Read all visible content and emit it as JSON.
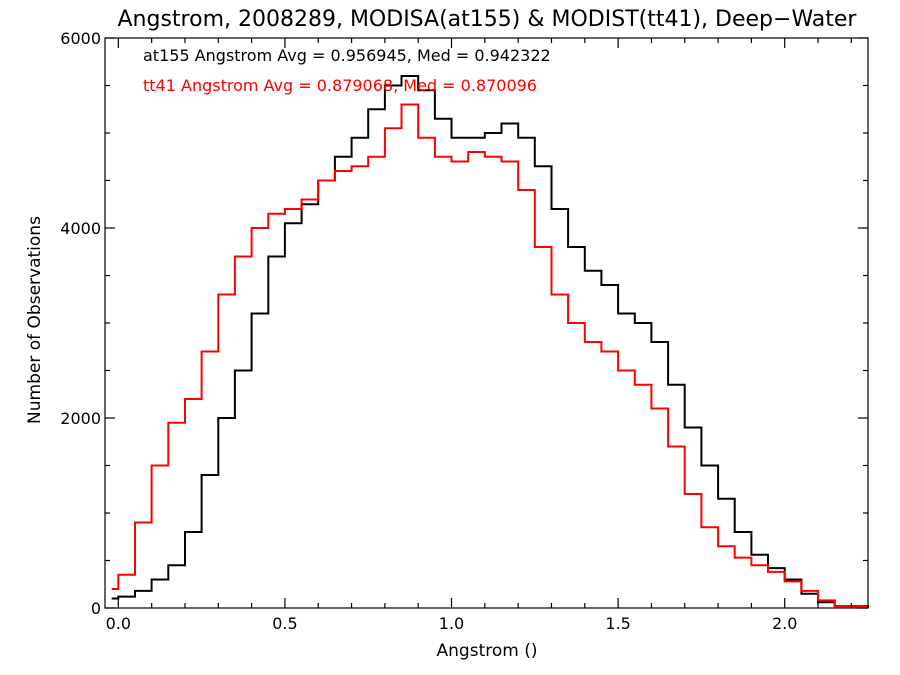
{
  "chart_data": {
    "type": "line",
    "step": true,
    "title": "Angstrom, 2008289, MODISA(at155) & MODIST(tt41), Deep−Water",
    "xlabel": "Angstrom ()",
    "ylabel": "Number of Observations",
    "xlim": [
      -0.04,
      2.25
    ],
    "ylim": [
      0,
      6000
    ],
    "x_ticks": [
      0.0,
      0.5,
      1.0,
      1.5,
      2.0
    ],
    "x_tick_labels": [
      "0.0",
      "0.5",
      "1.0",
      "1.5",
      "2.0"
    ],
    "y_ticks": [
      0,
      2000,
      4000,
      6000
    ],
    "y_tick_labels": [
      "0",
      "2000",
      "4000",
      "6000"
    ],
    "grid": false,
    "legend_position": "top-left",
    "series": [
      {
        "color": "#000000",
        "stats_text": "at155 Angstrom Avg = 0.956945, Med = 0.942322",
        "x": [
          -0.02,
          0.0,
          0.05,
          0.1,
          0.15,
          0.2,
          0.25,
          0.3,
          0.35,
          0.4,
          0.45,
          0.5,
          0.55,
          0.6,
          0.65,
          0.7,
          0.75,
          0.8,
          0.85,
          0.9,
          0.95,
          1.0,
          1.05,
          1.1,
          1.15,
          1.2,
          1.25,
          1.3,
          1.35,
          1.4,
          1.45,
          1.5,
          1.55,
          1.6,
          1.65,
          1.7,
          1.75,
          1.8,
          1.85,
          1.9,
          1.95,
          2.0,
          2.05,
          2.1,
          2.15,
          2.25
        ],
        "y": [
          100,
          120,
          180,
          300,
          450,
          800,
          1400,
          2000,
          2500,
          3100,
          3700,
          4050,
          4250,
          4500,
          4750,
          4950,
          5250,
          5500,
          5600,
          5450,
          5150,
          4950,
          4950,
          5000,
          5100,
          4950,
          4650,
          4200,
          3800,
          3550,
          3400,
          3100,
          3000,
          2800,
          2350,
          1900,
          1500,
          1150,
          800,
          560,
          420,
          300,
          150,
          60,
          20,
          0
        ]
      },
      {
        "color": "#ff0000",
        "stats_text": "tt41 Angstrom Avg = 0.879068, Med = 0.870096",
        "x": [
          -0.02,
          0.0,
          0.05,
          0.1,
          0.15,
          0.2,
          0.25,
          0.3,
          0.35,
          0.4,
          0.45,
          0.5,
          0.55,
          0.6,
          0.65,
          0.7,
          0.75,
          0.8,
          0.85,
          0.9,
          0.95,
          1.0,
          1.05,
          1.1,
          1.15,
          1.2,
          1.25,
          1.3,
          1.35,
          1.4,
          1.45,
          1.5,
          1.55,
          1.6,
          1.65,
          1.7,
          1.75,
          1.8,
          1.85,
          1.9,
          1.95,
          2.0,
          2.05,
          2.1,
          2.15,
          2.25
        ],
        "y": [
          200,
          350,
          900,
          1500,
          1950,
          2200,
          2700,
          3300,
          3700,
          4000,
          4150,
          4200,
          4300,
          4500,
          4600,
          4650,
          4750,
          5050,
          5300,
          4950,
          4750,
          4700,
          4800,
          4750,
          4700,
          4400,
          3800,
          3300,
          3000,
          2800,
          2700,
          2500,
          2350,
          2100,
          1700,
          1200,
          850,
          650,
          530,
          450,
          380,
          280,
          180,
          80,
          20,
          0
        ]
      }
    ]
  }
}
